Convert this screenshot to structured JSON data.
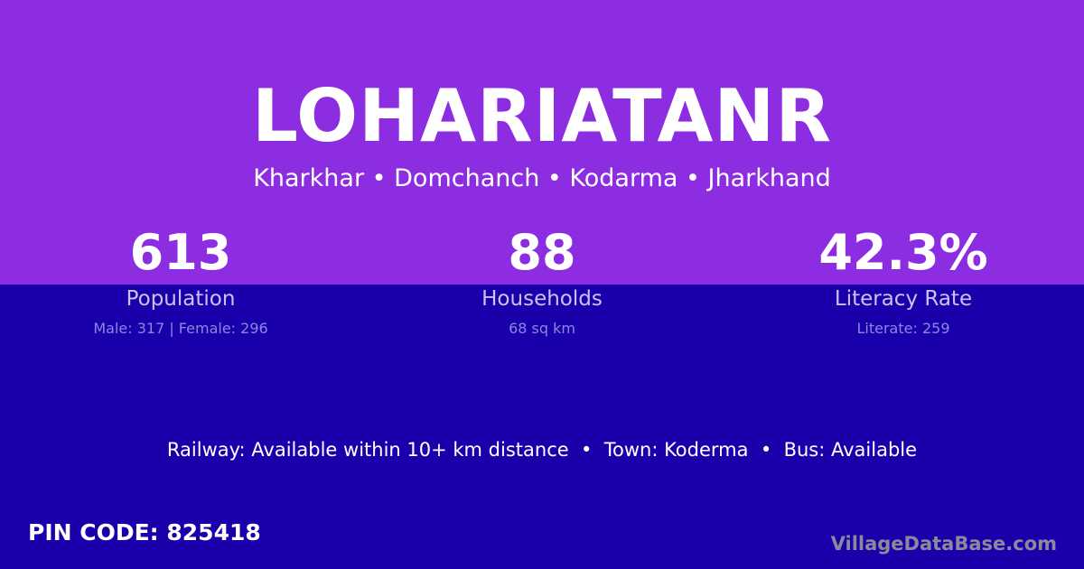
{
  "title": "LOHARIATANR",
  "subtitle": "Kharkhar • Domchanch • Kodarma • Jharkhand",
  "stats": [
    {
      "value": "613",
      "label": "Population",
      "sub": "Male: 317 | Female: 296"
    },
    {
      "value": "88",
      "label": "Households",
      "sub": "68 sq km"
    },
    {
      "value": "42.3%",
      "label": "Literacy Rate",
      "sub": "Literate: 259"
    }
  ],
  "amenities": "Railway: Available within 10+ km distance  •  Town: Koderma  •  Bus: Available",
  "pin": "PIN CODE: 825418",
  "brand": "VillageDataBase.com",
  "colors": {
    "top": "#8d2de2",
    "bottom": "#1a00aa"
  }
}
